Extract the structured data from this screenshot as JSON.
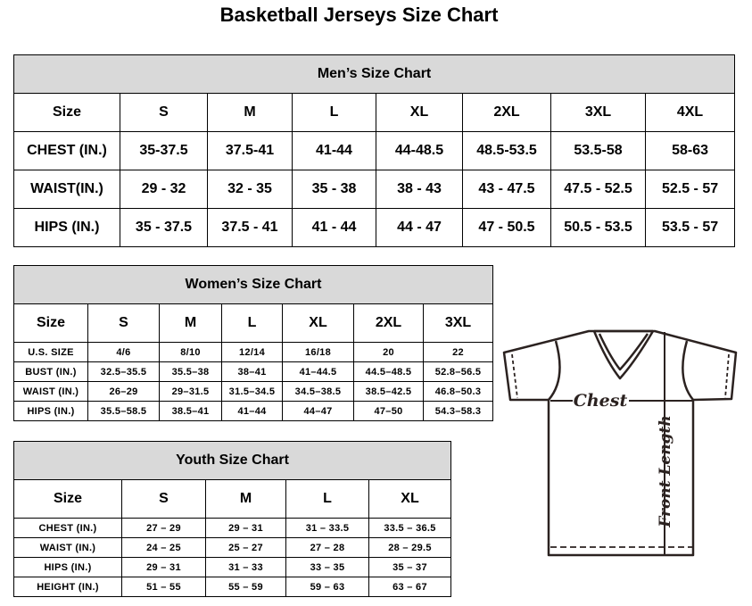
{
  "title": "Basketball Jerseys Size Chart",
  "men": {
    "caption": "Men’s Size Chart",
    "header": [
      "Size",
      "S",
      "M",
      "L",
      "XL",
      "2XL",
      "3XL",
      "4XL"
    ],
    "rows": [
      [
        "CHEST (IN.)",
        "35-37.5",
        "37.5-41",
        "41-44",
        "44-48.5",
        "48.5-53.5",
        "53.5-58",
        "58-63"
      ],
      [
        "WAIST(IN.)",
        "29 - 32",
        "32 - 35",
        "35 - 38",
        "38 - 43",
        "43 - 47.5",
        "47.5 - 52.5",
        "52.5 - 57"
      ],
      [
        "HIPS (IN.)",
        "35 - 37.5",
        "37.5 - 41",
        "41 - 44",
        "44 - 47",
        "47 - 50.5",
        "50.5 - 53.5",
        "53.5 - 57"
      ]
    ]
  },
  "women": {
    "caption": "Women’s Size Chart",
    "header": [
      "Size",
      "S",
      "M",
      "L",
      "XL",
      "2XL",
      "3XL"
    ],
    "rows": [
      [
        "U.S.  SIZE",
        "4/6",
        "8/10",
        "12/14",
        "16/18",
        "20",
        "22"
      ],
      [
        "BUST  (IN.)",
        "32.5–35.5",
        "35.5–38",
        "38–41",
        "41–44.5",
        "44.5–48.5",
        "52.8–56.5"
      ],
      [
        "WAIST  (IN.)",
        "26–29",
        "29–31.5",
        "31.5–34.5",
        "34.5–38.5",
        "38.5–42.5",
        "46.8–50.3"
      ],
      [
        "HIPS  (IN.)",
        "35.5–58.5",
        "38.5–41",
        "41–44",
        "44–47",
        "47–50",
        "54.3–58.3"
      ]
    ]
  },
  "youth": {
    "caption": "Youth Size Chart",
    "header": [
      "Size",
      "S",
      "M",
      "L",
      "XL"
    ],
    "rows": [
      [
        "CHEST  (IN.)",
        "27  –  29",
        "29  –  31",
        "31  –  33.5",
        "33.5  –  36.5"
      ],
      [
        "WAIST  (IN.)",
        "24  –  25",
        "25  –  27",
        "27  –  28",
        "28  –  29.5"
      ],
      [
        "HIPS  (IN.)",
        "29  –  31",
        "31  –  33",
        "33  –  35",
        "35  –  37"
      ],
      [
        "HEIGHT  (IN.)",
        "51  –  55",
        "55  –  59",
        "59  –  63",
        "63  –  67"
      ]
    ]
  },
  "diagram": {
    "chest_label": "Chest",
    "length_label": "Front Length",
    "line_color": "#2b2220"
  }
}
